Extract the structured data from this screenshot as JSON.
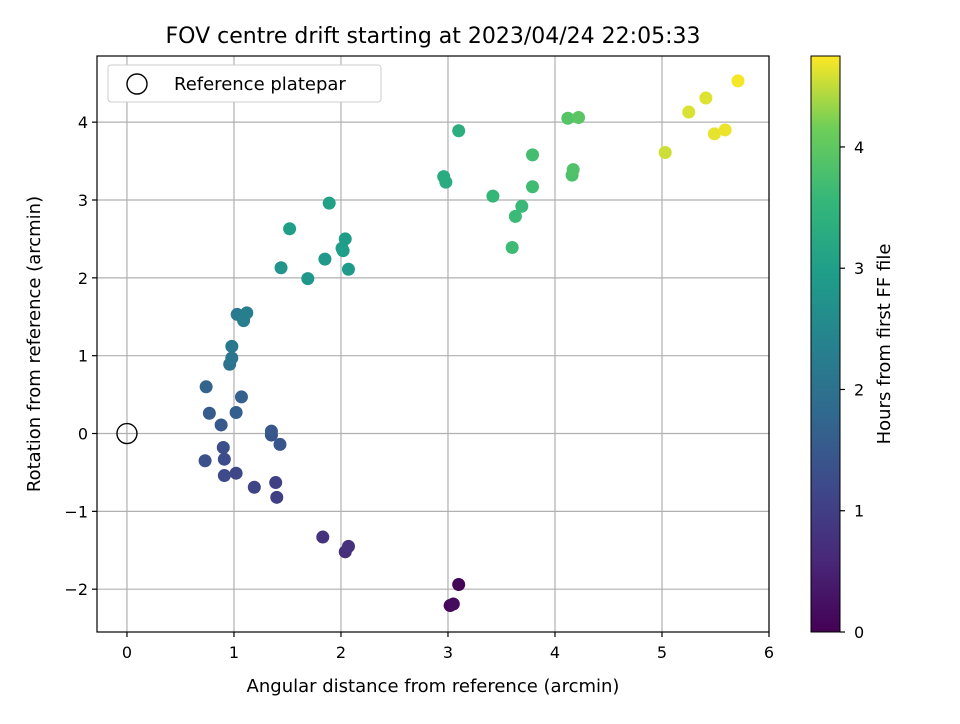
{
  "chart_data": {
    "type": "scatter",
    "title": "FOV centre drift starting at 2023/04/24 22:05:33",
    "xlabel": "Angular distance from reference (arcmin)",
    "ylabel": "Rotation from reference (arcmin)",
    "xlim": [
      -0.28,
      6.0
    ],
    "ylim": [
      -2.55,
      4.85
    ],
    "xticks": [
      0,
      1,
      2,
      3,
      4,
      5,
      6
    ],
    "yticks": [
      -2,
      -1,
      0,
      1,
      2,
      3,
      4
    ],
    "grid": true,
    "legend": {
      "placement": "upper-left",
      "entries": [
        "Reference platepar"
      ]
    },
    "reference_point": {
      "x": 0,
      "y": 0
    },
    "colorbar": {
      "label": "Hours from first FF file",
      "range": [
        0,
        4.75
      ],
      "ticks": [
        0,
        1,
        2,
        3,
        4
      ],
      "colormap": "viridis"
    },
    "points": [
      {
        "x": 3.1,
        "y": -1.94,
        "t": 0.05
      },
      {
        "x": 3.02,
        "y": -2.21,
        "t": 0.1
      },
      {
        "x": 3.05,
        "y": -2.19,
        "t": 0.15
      },
      {
        "x": 2.04,
        "y": -1.52,
        "t": 0.7
      },
      {
        "x": 2.07,
        "y": -1.45,
        "t": 0.75
      },
      {
        "x": 1.83,
        "y": -1.33,
        "t": 0.8
      },
      {
        "x": 1.4,
        "y": -0.82,
        "t": 1.0
      },
      {
        "x": 1.39,
        "y": -0.63,
        "t": 1.05
      },
      {
        "x": 1.19,
        "y": -0.69,
        "t": 1.1
      },
      {
        "x": 1.02,
        "y": -0.51,
        "t": 1.15
      },
      {
        "x": 0.91,
        "y": -0.54,
        "t": 1.2
      },
      {
        "x": 0.91,
        "y": -0.33,
        "t": 1.25
      },
      {
        "x": 0.9,
        "y": -0.18,
        "t": 1.3
      },
      {
        "x": 0.73,
        "y": -0.35,
        "t": 1.35
      },
      {
        "x": 1.35,
        "y": -0.02,
        "t": 1.4
      },
      {
        "x": 1.43,
        "y": -0.14,
        "t": 1.42
      },
      {
        "x": 1.35,
        "y": 0.03,
        "t": 1.45
      },
      {
        "x": 0.88,
        "y": 0.11,
        "t": 1.5
      },
      {
        "x": 0.77,
        "y": 0.26,
        "t": 1.55
      },
      {
        "x": 1.02,
        "y": 0.27,
        "t": 1.6
      },
      {
        "x": 1.07,
        "y": 0.47,
        "t": 1.65
      },
      {
        "x": 0.74,
        "y": 0.6,
        "t": 1.7
      },
      {
        "x": 0.96,
        "y": 0.89,
        "t": 2.05
      },
      {
        "x": 0.98,
        "y": 0.97,
        "t": 2.1
      },
      {
        "x": 0.98,
        "y": 1.12,
        "t": 2.15
      },
      {
        "x": 1.03,
        "y": 1.53,
        "t": 2.2
      },
      {
        "x": 1.09,
        "y": 1.45,
        "t": 2.25
      },
      {
        "x": 1.12,
        "y": 1.55,
        "t": 2.3
      },
      {
        "x": 1.44,
        "y": 2.13,
        "t": 2.75
      },
      {
        "x": 1.69,
        "y": 1.99,
        "t": 2.8
      },
      {
        "x": 1.85,
        "y": 2.24,
        "t": 2.85
      },
      {
        "x": 2.07,
        "y": 2.11,
        "t": 2.9
      },
      {
        "x": 2.01,
        "y": 2.38,
        "t": 2.92
      },
      {
        "x": 2.04,
        "y": 2.5,
        "t": 2.95
      },
      {
        "x": 2.02,
        "y": 2.35,
        "t": 2.97
      },
      {
        "x": 1.52,
        "y": 2.63,
        "t": 3.0
      },
      {
        "x": 1.89,
        "y": 2.96,
        "t": 3.05
      },
      {
        "x": 2.96,
        "y": 3.3,
        "t": 3.25
      },
      {
        "x": 2.98,
        "y": 3.23,
        "t": 3.3
      },
      {
        "x": 3.1,
        "y": 3.89,
        "t": 3.35
      },
      {
        "x": 3.42,
        "y": 3.05,
        "t": 3.55
      },
      {
        "x": 3.69,
        "y": 2.92,
        "t": 3.6
      },
      {
        "x": 3.63,
        "y": 2.79,
        "t": 3.62
      },
      {
        "x": 3.6,
        "y": 2.39,
        "t": 3.65
      },
      {
        "x": 3.79,
        "y": 3.17,
        "t": 3.68
      },
      {
        "x": 3.79,
        "y": 3.58,
        "t": 3.72
      },
      {
        "x": 4.16,
        "y": 3.32,
        "t": 3.8
      },
      {
        "x": 4.17,
        "y": 3.39,
        "t": 3.85
      },
      {
        "x": 4.12,
        "y": 4.05,
        "t": 3.9
      },
      {
        "x": 4.22,
        "y": 4.06,
        "t": 3.95
      },
      {
        "x": 5.03,
        "y": 3.61,
        "t": 4.55
      },
      {
        "x": 5.25,
        "y": 4.13,
        "t": 4.6
      },
      {
        "x": 5.41,
        "y": 4.31,
        "t": 4.62
      },
      {
        "x": 5.49,
        "y": 3.85,
        "t": 4.65
      },
      {
        "x": 5.59,
        "y": 3.9,
        "t": 4.68
      },
      {
        "x": 5.71,
        "y": 4.53,
        "t": 4.72
      }
    ]
  }
}
